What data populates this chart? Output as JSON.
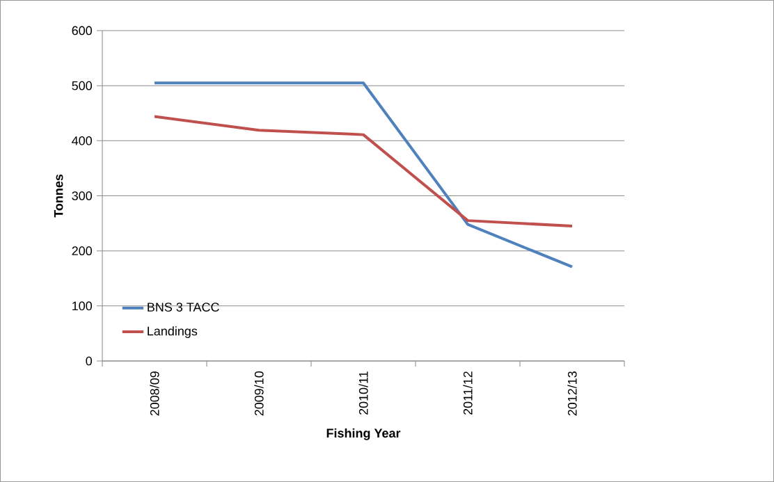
{
  "chart_data": {
    "type": "line",
    "xlabel": "Fishing Year",
    "ylabel": "Tonnes",
    "categories": [
      "2008/09",
      "2009/10",
      "2010/11",
      "2011/12",
      "2012/13"
    ],
    "series": [
      {
        "name": "BNS 3 TACC",
        "color": "#4f81bd",
        "values": [
          505,
          505,
          505,
          248,
          171
        ]
      },
      {
        "name": "Landings",
        "color": "#c0504d",
        "values": [
          444,
          419,
          411,
          255,
          245
        ]
      }
    ],
    "ylim": [
      0,
      600
    ],
    "yticks": [
      0,
      100,
      200,
      300,
      400,
      500,
      600
    ],
    "grid": "y",
    "legend": "bottom left",
    "marker": "none",
    "line_style": "solid"
  }
}
